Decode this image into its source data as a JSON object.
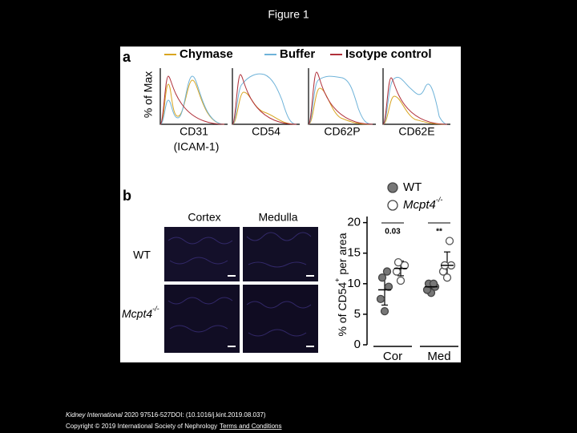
{
  "slide": {
    "title": "Figure 1"
  },
  "panel_a": {
    "label": "a",
    "y_label": "% of Max",
    "legend": [
      {
        "name": "Chymase",
        "color": "#d9a520"
      },
      {
        "name": "Buffer",
        "color": "#6fb3d9"
      },
      {
        "name": "Isotype control",
        "color": "#b0303a"
      }
    ],
    "markers": [
      "CD31",
      "CD54",
      "CD62P",
      "CD62E"
    ],
    "marker_note": "(ICAM-1)"
  },
  "panel_b": {
    "label": "b",
    "columns": [
      "Cortex",
      "Medulla"
    ],
    "rows": [
      {
        "text": "WT"
      },
      {
        "text": "Mcpt4",
        "superscript": "-/-"
      }
    ]
  },
  "chart_data": {
    "type": "scatter",
    "y_label": {
      "text": "% of CD54",
      "superscript": "+",
      "suffix": " per area"
    },
    "categories": [
      "Cor",
      "Med"
    ],
    "annotations": [
      "0.03",
      "**"
    ],
    "series": [
      {
        "name": "WT",
        "color": "#777777",
        "filled": true,
        "values": [
          [
            5.5,
            7.5,
            9.5,
            11,
            12
          ],
          [
            8.5,
            9,
            9.5,
            10,
            10
          ]
        ],
        "mean": [
          9,
          9.5
        ],
        "error": [
          2.5,
          0.8
        ]
      },
      {
        "name": "Mcpt4",
        "name_superscript": "-/-",
        "color": "#777777",
        "filled": false,
        "values": [
          [
            10.5,
            12,
            13,
            13.5
          ],
          [
            11,
            12,
            13,
            13,
            17
          ]
        ],
        "mean": [
          12.5,
          13
        ],
        "error": [
          1.2,
          2.2
        ]
      }
    ],
    "ylim": [
      0,
      21
    ],
    "yticks": [
      0,
      5,
      10,
      15,
      20
    ]
  },
  "caption": {
    "journal": "Kidney International",
    "citation": " 2020 97516-527DOI: (10.1016/j.kint.2019.08.037)",
    "copyright": "Copyright © 2019 International Society of Nephrology",
    "link": "Terms and Conditions"
  }
}
